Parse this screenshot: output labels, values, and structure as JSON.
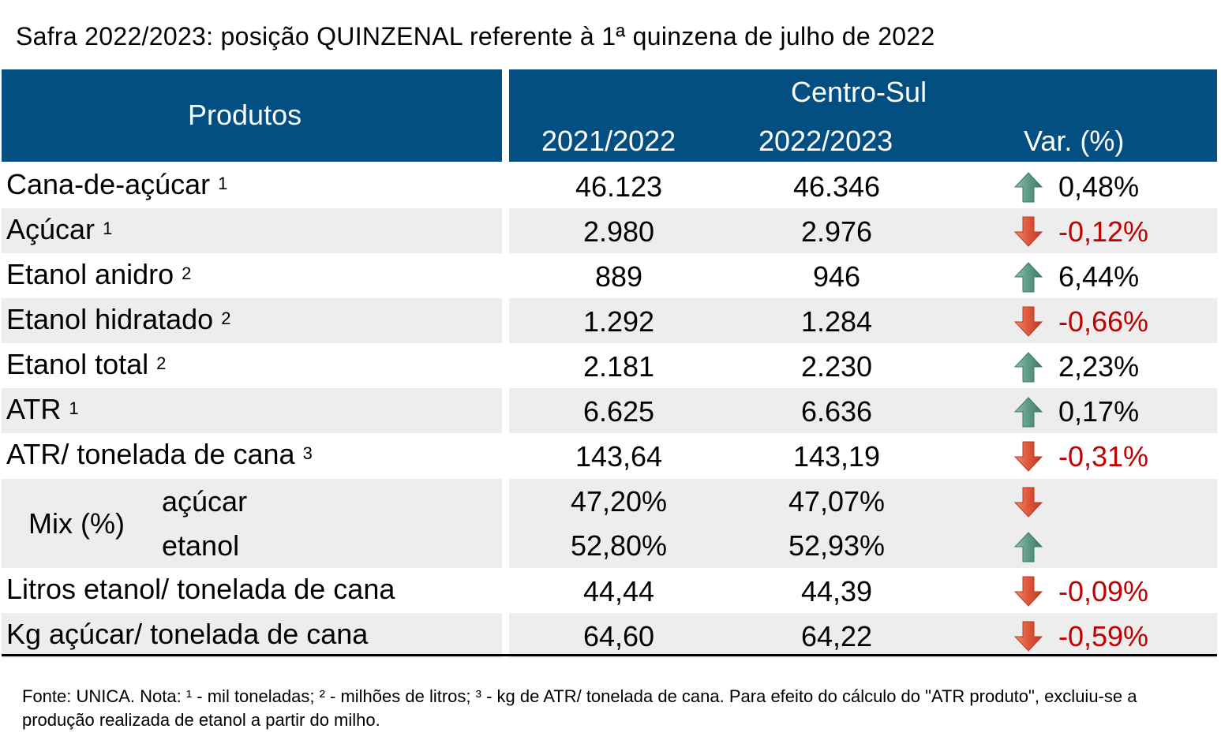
{
  "title": "Safra 2022/2023: posição QUINZENAL referente à 1ª quinzena de julho de 2022",
  "header": {
    "products": "Produtos",
    "region": "Centro-Sul",
    "col1": "2021/2022",
    "col2": "2022/2023",
    "var": "Var. (%)"
  },
  "rows": [
    {
      "label": "Cana-de-açúcar",
      "sup": "1",
      "v1": "46.123",
      "v2": "46.346",
      "dir": "up",
      "var": "0,48%"
    },
    {
      "label": "Açúcar",
      "sup": "1",
      "v1": "2.980",
      "v2": "2.976",
      "dir": "down",
      "var": "-0,12%"
    },
    {
      "label": "Etanol anidro",
      "sup": "2",
      "v1": "889",
      "v2": "946",
      "dir": "up",
      "var": "6,44%"
    },
    {
      "label": "Etanol hidratado",
      "sup": "2",
      "v1": "1.292",
      "v2": "1.284",
      "dir": "down",
      "var": "-0,66%"
    },
    {
      "label": "Etanol total",
      "sup": "2",
      "v1": "2.181",
      "v2": "2.230",
      "dir": "up",
      "var": "2,23%"
    },
    {
      "label": "ATR",
      "sup": "1",
      "v1": "6.625",
      "v2": "6.636",
      "dir": "up",
      "var": "0,17%"
    },
    {
      "label": "ATR/ tonelada de cana",
      "sup": "3",
      "v1": "143,64",
      "v2": "143,19",
      "dir": "down",
      "var": "-0,31%"
    }
  ],
  "mix": {
    "label": "Mix (%)",
    "sugar": {
      "label": "açúcar",
      "v1": "47,20%",
      "v2": "47,07%",
      "dir": "down"
    },
    "ethanol": {
      "label": "etanol",
      "v1": "52,80%",
      "v2": "52,93%",
      "dir": "up"
    }
  },
  "rows_after": [
    {
      "label": "Litros etanol/ tonelada de cana",
      "v1": "44,44",
      "v2": "44,39",
      "dir": "down",
      "var": "-0,09%"
    },
    {
      "label": "Kg açúcar/ tonelada de cana",
      "v1": "64,60",
      "v2": "64,22",
      "dir": "down",
      "var": "-0,59%"
    }
  ],
  "footnote": "Fonte: UNICA. Nota: ¹ - mil toneladas; ² - milhões de litros; ³ - kg de ATR/ tonelada de cana. Para efeito do cálculo do \"ATR produto\", excluiu-se a produção realizada de etanol a partir do milho.",
  "colors": {
    "header_bg": "#044f82",
    "up_arrow": "#5e9a87",
    "down_arrow": "#e0563a",
    "negative_text": "#c00000",
    "shade": "#ededed"
  }
}
